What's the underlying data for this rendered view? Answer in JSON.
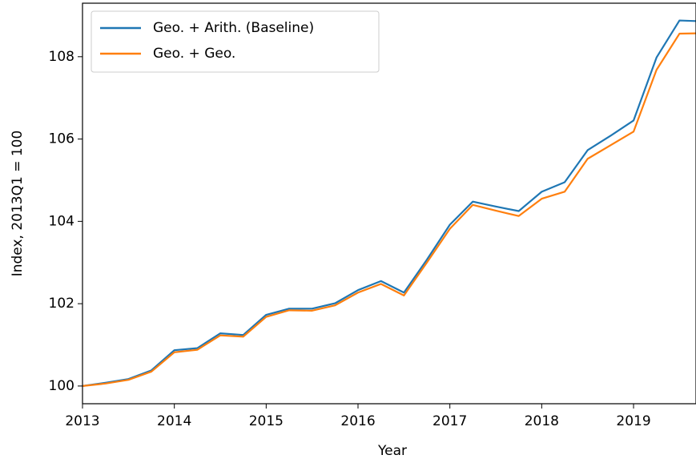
{
  "chart_data": {
    "type": "line",
    "xlabel": "Year",
    "ylabel": "Index, 2013Q1 = 100",
    "x": [
      2013,
      2013.25,
      2013.5,
      2013.75,
      2014,
      2014.25,
      2014.5,
      2014.75,
      2015,
      2015.25,
      2015.5,
      2015.75,
      2016,
      2016.25,
      2016.5,
      2016.75,
      2017,
      2017.25,
      2017.5,
      2017.75,
      2018,
      2018.25,
      2018.5,
      2018.75,
      2019,
      2019.25,
      2019.5,
      2019.75
    ],
    "series": [
      {
        "name": "Geo. + Arith. (Baseline)",
        "color": "#1f77b4",
        "values": [
          100.0,
          100.08,
          100.17,
          100.38,
          100.87,
          100.92,
          101.28,
          101.24,
          101.73,
          101.88,
          101.88,
          102.01,
          102.33,
          102.55,
          102.27,
          103.07,
          103.92,
          104.48,
          104.36,
          104.25,
          104.72,
          104.95,
          105.73,
          106.08,
          106.45,
          107.98,
          108.88,
          108.86
        ]
      },
      {
        "name": "Geo. + Geo.",
        "color": "#ff7f0e",
        "values": [
          100.0,
          100.06,
          100.15,
          100.35,
          100.82,
          100.88,
          101.23,
          101.2,
          101.68,
          101.84,
          101.83,
          101.96,
          102.27,
          102.48,
          102.2,
          103.0,
          103.82,
          104.4,
          104.26,
          104.13,
          104.55,
          104.72,
          105.52,
          105.85,
          106.18,
          107.68,
          108.56,
          108.57
        ]
      }
    ],
    "xlim": [
      2013,
      2019.68
    ],
    "ylim": [
      99.57,
      109.3
    ],
    "xticks": [
      2013,
      2014,
      2015,
      2016,
      2017,
      2018,
      2019
    ],
    "yticks": [
      100,
      102,
      104,
      106,
      108
    ],
    "legend": "upper left"
  }
}
